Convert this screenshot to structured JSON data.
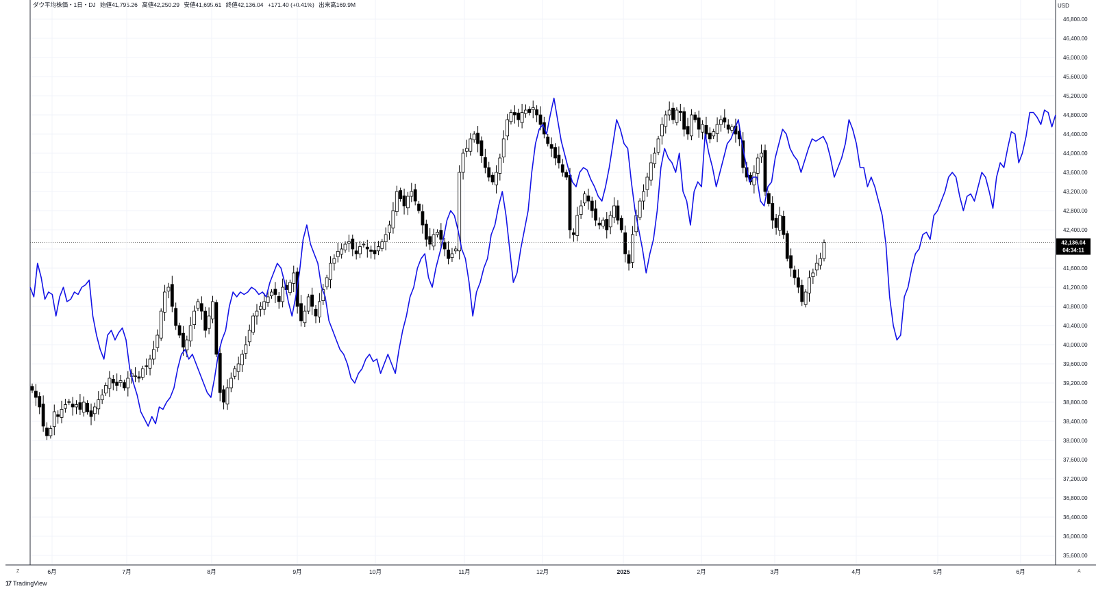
{
  "header": {
    "symbol": "ダウ平均株価・1日・DJ",
    "open": "始値41,795.26",
    "high": "高値42,250.29",
    "low": "安値41,695.61",
    "close": "終値42,136.04",
    "change": "+171.40 (+0.41%)",
    "volume": "出来高169.9M"
  },
  "currency": "USD",
  "price_tag": {
    "price": "42,136.04",
    "countdown": "04:34:11"
  },
  "branding": "TradingView",
  "corner": {
    "left": "Z",
    "right": "A"
  },
  "colors": {
    "up_candle": "#ffffff",
    "down_candle": "#000000",
    "wick": "#000000",
    "compare_line": "#1414e6",
    "grid": "#f0f3fa",
    "price_line": "#555555"
  },
  "chart_data": [
    {
      "type": "candlestick",
      "title": "",
      "ylim": [
        35400,
        47200
      ],
      "y_ticks": [
        "35,600.00",
        "36,000.00",
        "36,400.00",
        "36,800.00",
        "37,200.00",
        "37,600.00",
        "38,000.00",
        "38,400.00",
        "38,800.00",
        "39,200.00",
        "39,600.00",
        "40,000.00",
        "40,400.00",
        "40,800.00",
        "41,200.00",
        "41,600.00",
        "42,000.00",
        "42,400.00",
        "42,800.00",
        "43,200.00",
        "43,600.00",
        "44,000.00",
        "44,400.00",
        "44,800.00",
        "45,200.00",
        "45,600.00",
        "46,000.00",
        "46,400.00",
        "46,800.00"
      ],
      "x_ticks": [
        "6月",
        "7月",
        "8月",
        "9月",
        "10月",
        "11月",
        "12月",
        "2025",
        "2月",
        "3月",
        "4月",
        "5月",
        "6月"
      ],
      "grid": true,
      "ohlc_series_close": [
        39050,
        38900,
        38700,
        38300,
        38100,
        38250,
        38600,
        38500,
        38650,
        38750,
        38800,
        38700,
        38750,
        38650,
        38800,
        38600,
        38500,
        38700,
        38850,
        38950,
        39150,
        39300,
        39200,
        39150,
        39250,
        39100,
        39300,
        39400,
        39350,
        39300,
        39500,
        39550,
        39700,
        39900,
        40200,
        40700,
        41100,
        41200,
        40800,
        40400,
        40200,
        39950,
        40100,
        40400,
        40700,
        40900,
        40700,
        40300,
        40600,
        40900,
        39800,
        39000,
        38800,
        39100,
        39300,
        39500,
        39600,
        39800,
        40000,
        40300,
        40600,
        40700,
        40800,
        40900,
        41000,
        41100,
        41050,
        40900,
        41200,
        41150,
        41300,
        41500,
        40800,
        40500,
        40700,
        41000,
        40800,
        40600,
        40900,
        41150,
        41400,
        41700,
        41800,
        41950,
        42000,
        42100,
        42150,
        42000,
        41900,
        42050,
        42100,
        42000,
        41950,
        41900,
        42050,
        42150,
        42300,
        42500,
        42800,
        43200,
        43050,
        42900,
        43100,
        43200,
        43000,
        42800,
        42500,
        42200,
        42100,
        42300,
        42350,
        42200,
        42000,
        41800,
        41900,
        42000,
        43600,
        44000,
        44100,
        44300,
        44400,
        44200,
        43950,
        43700,
        43500,
        43400,
        43600,
        43900,
        44300,
        44700,
        44850,
        44800,
        44700,
        44850,
        44900,
        44850,
        44950,
        44800,
        44600,
        44400,
        44200,
        44100,
        43900,
        43800,
        43600,
        43500,
        42400,
        42300,
        42700,
        42900,
        43150,
        43000,
        42800,
        42600,
        42500,
        42600,
        42400,
        42700,
        42900,
        42600,
        42400,
        41900,
        41700,
        42300,
        42700,
        43000,
        43200,
        43500,
        43800,
        44000,
        44300,
        44600,
        44800,
        44900,
        44700,
        44900,
        44850,
        44500,
        44400,
        44800,
        44700,
        44500,
        44600,
        44400,
        44300,
        44450,
        44600,
        44700,
        44650,
        44500,
        44550,
        44400,
        44300,
        43700,
        43500,
        43400,
        43600,
        43900,
        44000,
        43200,
        42950,
        42600,
        42450,
        42700,
        42300,
        41800,
        41600,
        41400,
        41200,
        40900,
        41100,
        41400,
        41500,
        41700,
        41800,
        42136
      ],
      "compare_series": [
        41200,
        41000,
        41700,
        41400,
        40950,
        41100,
        41050,
        40600,
        41000,
        41200,
        40900,
        40950,
        41100,
        41050,
        41200,
        41250,
        41350,
        40600,
        40200,
        39900,
        39700,
        40200,
        40300,
        40100,
        40250,
        40350,
        40100,
        39500,
        39200,
        38950,
        38600,
        38450,
        38300,
        38500,
        38350,
        38700,
        38650,
        38800,
        38900,
        39100,
        39500,
        39800,
        39900,
        39700,
        39800,
        39600,
        39400,
        39200,
        39000,
        38900,
        39300,
        39800,
        40100,
        40300,
        40800,
        41100,
        41000,
        41100,
        41050,
        41100,
        41200,
        41150,
        41050,
        41100,
        41000,
        41300,
        41500,
        41700,
        41600,
        41300,
        40900,
        40600,
        41000,
        41500,
        42200,
        42500,
        42100,
        41900,
        41700,
        41200,
        41000,
        40500,
        40300,
        40100,
        39900,
        39800,
        39600,
        39300,
        39200,
        39400,
        39500,
        39700,
        39800,
        39650,
        39700,
        39400,
        39600,
        39800,
        39600,
        39400,
        39900,
        40300,
        40600,
        41000,
        41200,
        41600,
        41800,
        41900,
        41400,
        41200,
        41600,
        41900,
        42200,
        42600,
        42800,
        42700,
        42400,
        42000,
        41800,
        41300,
        40600,
        41100,
        41300,
        41600,
        41800,
        42300,
        42500,
        42900,
        43200,
        42700,
        42000,
        41300,
        41500,
        42000,
        42400,
        42800,
        43600,
        44200,
        44500,
        44600,
        44400,
        44800,
        45150,
        44700,
        44250,
        43950,
        43650,
        43400,
        43300,
        43600,
        43700,
        43650,
        43450,
        43300,
        43100,
        43000,
        43300,
        43700,
        44200,
        44700,
        44500,
        44200,
        44100,
        43400,
        42800,
        42400,
        42000,
        41500,
        41900,
        42200,
        42800,
        43700,
        44100,
        43900,
        43800,
        43600,
        44000,
        43200,
        43000,
        42500,
        43200,
        43400,
        43300,
        44400,
        44000,
        43700,
        43300,
        43600,
        43900,
        44200,
        44300,
        44500,
        44700,
        44200,
        43800,
        43400,
        43500,
        43500,
        43000,
        42900,
        43300,
        43400,
        43900,
        44200,
        44500,
        44400,
        44100,
        43950,
        43850,
        43600,
        43850,
        44100,
        44300,
        44250,
        44300,
        44350,
        44200,
        43900,
        43500,
        43700,
        43900,
        44200,
        44700,
        44500,
        44200,
        43700,
        43700,
        43300,
        43500,
        43300,
        43000,
        42700,
        42100,
        41000,
        40400,
        40100,
        40200,
        41000,
        41200,
        41600,
        41900,
        42000,
        42300,
        42350,
        42200,
        42700,
        42800,
        43000,
        43200,
        43500,
        43600,
        43500,
        43100,
        42800,
        43100,
        43150,
        43000,
        43300,
        43600,
        43500,
        43200,
        42850,
        43500,
        43800,
        43700,
        44100,
        44450,
        44400,
        43800,
        44000,
        44350,
        44850,
        44850,
        44750,
        44600,
        44900,
        44850,
        44550,
        44800
      ]
    }
  ]
}
